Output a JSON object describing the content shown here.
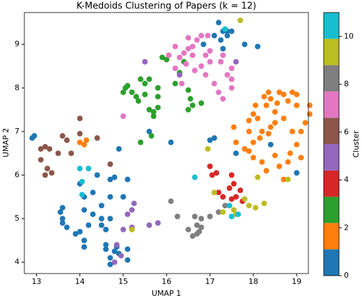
{
  "chart_data": {
    "type": "scatter",
    "title": "K-Medoids Clustering of Papers (k = 12)",
    "x_label": "UMAP 1",
    "y_label": "UMAP 2",
    "xlim": [
      12.72,
      19.27
    ],
    "ylim": [
      3.74,
      9.73
    ],
    "xticks": [
      13,
      14,
      15,
      16,
      17,
      18,
      19
    ],
    "yticks": [
      4,
      5,
      6,
      7,
      8,
      9
    ],
    "x": [
      12.9,
      12.95,
      13.6,
      13.55,
      13.6,
      13.6,
      13.7,
      13.9,
      14.0,
      14.1,
      14.1,
      14.2,
      14.1,
      14.3,
      14.1,
      14.0,
      14.3,
      14.5,
      14.4,
      14.6,
      14.6,
      14.7,
      14.7,
      14.8,
      14.9,
      14.85,
      14.7,
      14.6,
      14.5,
      14.5,
      15.1,
      15.1,
      15.0,
      15.1,
      14.7,
      14.7,
      14.9,
      14.8,
      15.6,
      16.1,
      17.0,
      17.1,
      17.3,
      17.4,
      17.25,
      17.2,
      17.5,
      17.4,
      17.1,
      17.8,
      18.1,
      17.3,
      17.6,
      18.4,
      19.0,
      16.85,
      14.15,
      14.1,
      14.0,
      17.55,
      17.6,
      17.9,
      17.9,
      18.0,
      18.05,
      18.1,
      18.3,
      18.25,
      18.35,
      18.4,
      18.55,
      18.6,
      18.7,
      18.8,
      18.9,
      19.0,
      19.0,
      18.5,
      18.7,
      18.5,
      18.4,
      18.35,
      18.2,
      18.15,
      18.0,
      17.9,
      17.8,
      18.0,
      18.2,
      18.5,
      18.6,
      18.8,
      18.85,
      19.0,
      19.1,
      19.2,
      19.3,
      19.3,
      18.3,
      18.7,
      19.1,
      18.9,
      15.0,
      15.05,
      15.1,
      15.3,
      15.35,
      15.5,
      15.5,
      15.6,
      15.2,
      15.6,
      15.7,
      15.7,
      15.8,
      15.8,
      15.8,
      15.4,
      15.9,
      16.0,
      16.3,
      16.5,
      16.55,
      16.6,
      16.8,
      16.5,
      16.4,
      15.4,
      15.65,
      16.2,
      17.0,
      17.05,
      17.15,
      17.5,
      17.55,
      17.45,
      17.6,
      17.7,
      17.5,
      17.3,
      17.2,
      17.75,
      15.5,
      15.2,
      15.25,
      15.1,
      15.2,
      15.0,
      15.6,
      15.8,
      14.85,
      14.95,
      14.8,
      17.6,
      16.3,
      13.1,
      13.2,
      13.3,
      13.1,
      13.25,
      13.2,
      13.35,
      13.5,
      13.6,
      13.7,
      13.8,
      14.0,
      14.0,
      14.4,
      14.7,
      15.0,
      16.2,
      16.3,
      16.4,
      16.5,
      16.5,
      16.6,
      16.7,
      16.8,
      16.95,
      16.2,
      16.05,
      16.6,
      16.35,
      16.65,
      16.8,
      16.9,
      17.1,
      17.2,
      17.3,
      17.5,
      17.4,
      17.5,
      17.5,
      17.25,
      17.3,
      17.0,
      16.9,
      16.45,
      17.0,
      16.1,
      16.25,
      16.5,
      16.6,
      16.7,
      16.75,
      16.7,
      16.8,
      16.8,
      16.65,
      17.0,
      17.2,
      17.35,
      15.2,
      17.3,
      17.1,
      17.55,
      17.8,
      17.9,
      18.05,
      18.25,
      18.1,
      17.6,
      18.8,
      16.95,
      17.7,
      14.0,
      14.2,
      14.05,
      14.05,
      16.65,
      17.5,
      17.65,
      17.45,
      17.35
    ],
    "y": [
      6.85,
      6.9,
      5.25,
      5.15,
      5.0,
      4.9,
      4.8,
      4.65,
      4.7,
      4.5,
      4.35,
      4.85,
      5.2,
      5.1,
      5.5,
      5.8,
      5.6,
      5.3,
      6.0,
      4.4,
      4.3,
      4.1,
      3.95,
      4.25,
      4.2,
      4.35,
      5.0,
      4.75,
      4.85,
      5.0,
      4.05,
      4.3,
      5.5,
      5.9,
      5.9,
      5.5,
      6.6,
      5.95,
      7.0,
      6.75,
      6.8,
      6.85,
      9.3,
      9.3,
      9.1,
      9.5,
      9.3,
      9.2,
      9.2,
      9.0,
      8.95,
      8.9,
      6.5,
      6.7,
      6.05,
      9.0,
      6.8,
      6.7,
      6.75,
      7.1,
      6.75,
      7.0,
      7.25,
      7.4,
      7.6,
      7.3,
      7.6,
      7.8,
      7.9,
      7.75,
      7.65,
      7.9,
      7.85,
      7.7,
      7.9,
      7.85,
      7.6,
      7.45,
      7.3,
      7.2,
      7.1,
      6.95,
      7.0,
      6.85,
      6.75,
      6.55,
      6.6,
      6.4,
      6.3,
      6.45,
      6.2,
      6.3,
      6.5,
      6.7,
      7.0,
      7.2,
      7.4,
      7.6,
      6.1,
      5.9,
      6.4,
      7.0,
      7.9,
      8.0,
      8.05,
      7.8,
      7.7,
      7.85,
      8.1,
      8.2,
      7.9,
      7.5,
      7.45,
      7.35,
      7.55,
      7.8,
      8.0,
      8.2,
      8.7,
      8.65,
      8.35,
      7.95,
      7.75,
      7.6,
      7.65,
      7.5,
      8.6,
      6.75,
      6.9,
      8.1,
      6.2,
      6.0,
      6.05,
      6.0,
      5.8,
      5.7,
      5.5,
      5.65,
      5.45,
      5.5,
      5.6,
      5.4,
      8.6,
      5.2,
      5.35,
      5.1,
      4.8,
      4.75,
      4.85,
      4.9,
      4.4,
      4.15,
      4.0,
      8.6,
      8.3,
      6.6,
      6.65,
      6.6,
      6.35,
      6.15,
      6.0,
      6.05,
      6.5,
      6.9,
      6.8,
      6.5,
      7.3,
      6.95,
      6.85,
      6.25,
      7.35,
      8.95,
      8.7,
      8.8,
      9.15,
      8.9,
      8.95,
      9.1,
      9.2,
      9.2,
      8.45,
      8.75,
      8.75,
      8.1,
      8.4,
      8.5,
      8.3,
      8.1,
      7.9,
      7.75,
      8.0,
      8.3,
      8.2,
      8.45,
      8.6,
      8.75,
      8.6,
      8.75,
      8.55,
      8.85,
      5.4,
      5.05,
      4.75,
      4.6,
      4.65,
      4.7,
      4.85,
      5.0,
      4.8,
      5.05,
      5.05,
      5.15,
      5.3,
      4.75,
      5.15,
      5.6,
      5.2,
      5.45,
      5.3,
      5.25,
      5.35,
      5.95,
      5.1,
      5.9,
      6.6,
      9.55,
      6.15,
      6.15,
      5.85,
      5.55,
      5.95,
      5.05,
      5.1,
      5.3,
      9.35
    ],
    "c": [
      0,
      0,
      0,
      0,
      0,
      0,
      0,
      0,
      0,
      0,
      0,
      0,
      0,
      0,
      0,
      0,
      0,
      0,
      0,
      0,
      0,
      0,
      0,
      0,
      0,
      0,
      0,
      0,
      0,
      0,
      0,
      0,
      0,
      0,
      0,
      0,
      0,
      0,
      0,
      0,
      0,
      0,
      0,
      0,
      0,
      0,
      0,
      0,
      0,
      0,
      0,
      0,
      0,
      0,
      0,
      0,
      2,
      2,
      2,
      2,
      2,
      2,
      2,
      2,
      2,
      2,
      2,
      2,
      2,
      2,
      2,
      2,
      2,
      2,
      2,
      2,
      2,
      2,
      2,
      2,
      2,
      2,
      2,
      2,
      2,
      2,
      2,
      2,
      2,
      2,
      2,
      2,
      2,
      2,
      2,
      2,
      2,
      2,
      2,
      2,
      2,
      2,
      3,
      3,
      3,
      3,
      3,
      3,
      3,
      3,
      3,
      3,
      3,
      3,
      3,
      3,
      3,
      3,
      3,
      3,
      3,
      3,
      3,
      3,
      3,
      3,
      3,
      3,
      3,
      3,
      4,
      4,
      4,
      4,
      4,
      4,
      4,
      4,
      4,
      4,
      4,
      4,
      5,
      5,
      5,
      5,
      5,
      5,
      5,
      5,
      5,
      5,
      5,
      5,
      5,
      6,
      6,
      6,
      6,
      6,
      6,
      6,
      6,
      6,
      6,
      6,
      6,
      6,
      6,
      6,
      7,
      7,
      7,
      7,
      7,
      7,
      7,
      7,
      7,
      7,
      7,
      7,
      7,
      7,
      7,
      7,
      7,
      7,
      7,
      7,
      7,
      7,
      7,
      7,
      7,
      7,
      7,
      7,
      7,
      7,
      8,
      8,
      8,
      8,
      8,
      8,
      8,
      8,
      8,
      8,
      8,
      8,
      8,
      9,
      9,
      9,
      9,
      9,
      9,
      9,
      9,
      9,
      9,
      9,
      9,
      9,
      11,
      11,
      11,
      11,
      11,
      11,
      11,
      11,
      11
    ],
    "colorbar": {
      "label": "Cluster",
      "clim": [
        0,
        11
      ],
      "ticks": [
        0,
        2,
        4,
        6,
        8,
        10
      ],
      "colors": [
        "#1f77b4",
        "#ff7f0e",
        "#2ca02c",
        "#d62728",
        "#9467bd",
        "#8c564b",
        "#e377c2",
        "#7f7f7f",
        "#bcbd22",
        "#17becf"
      ]
    }
  }
}
